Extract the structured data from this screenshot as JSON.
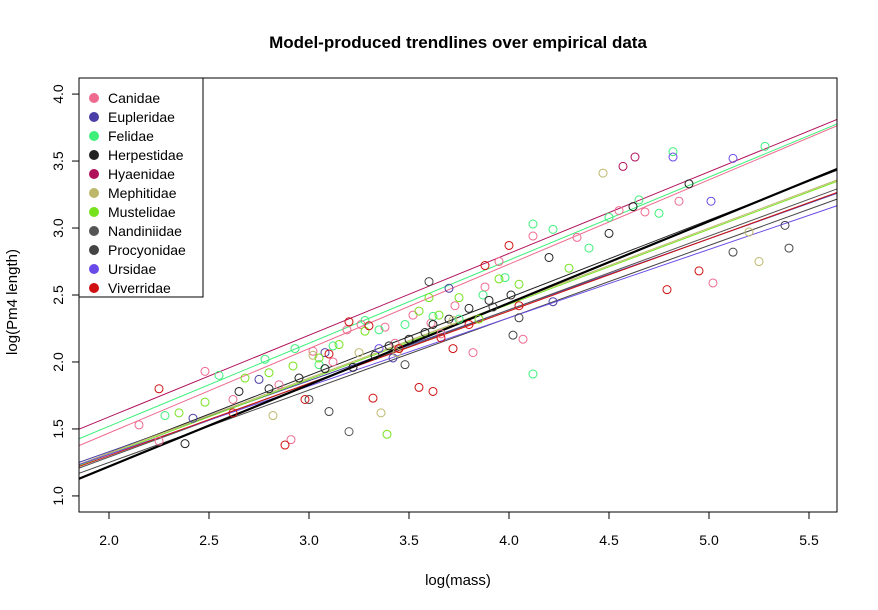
{
  "chart_data": {
    "type": "scatter",
    "title": "Model-produced trendlines over empirical data",
    "xlabel": "log(mass)",
    "ylabel": "log(Pm4 length)",
    "xlim": [
      1.85,
      5.64
    ],
    "ylim": [
      0.88,
      4.12
    ],
    "x_ticks": [
      "2.0",
      "2.5",
      "3.0",
      "3.5",
      "4.0",
      "4.5",
      "5.0",
      "5.5"
    ],
    "y_ticks": [
      "1.0",
      "1.5",
      "2.0",
      "2.5",
      "3.0",
      "3.5",
      "4.0"
    ],
    "legend_position": "top-left",
    "point_style": "open-circle",
    "series": [
      {
        "name": "Canidae",
        "color": "#ee6a8f",
        "points": [
          [
            2.15,
            1.53
          ],
          [
            2.25,
            1.41
          ],
          [
            2.48,
            1.93
          ],
          [
            2.62,
            1.72
          ],
          [
            2.85,
            1.83
          ],
          [
            2.91,
            1.42
          ],
          [
            3.02,
            2.08
          ],
          [
            3.12,
            2.0
          ],
          [
            3.19,
            2.24
          ],
          [
            3.26,
            2.28
          ],
          [
            3.38,
            2.26
          ],
          [
            3.43,
            2.14
          ],
          [
            3.52,
            2.35
          ],
          [
            3.61,
            2.29
          ],
          [
            3.66,
            2.21
          ],
          [
            3.73,
            2.42
          ],
          [
            3.82,
            2.07
          ],
          [
            3.88,
            2.56
          ],
          [
            3.95,
            2.75
          ],
          [
            4.07,
            2.17
          ],
          [
            4.12,
            2.94
          ],
          [
            4.34,
            2.93
          ],
          [
            4.55,
            3.13
          ],
          [
            4.68,
            3.12
          ],
          [
            4.85,
            3.2
          ],
          [
            5.02,
            2.59
          ]
        ],
        "trend": {
          "intercept": 0.21,
          "slope": 0.63
        }
      },
      {
        "name": "Eupleridae",
        "color": "#4a3fa6",
        "points": [
          [
            2.42,
            1.58
          ],
          [
            2.75,
            1.87
          ],
          [
            3.08,
            2.07
          ],
          [
            3.42,
            2.03
          ],
          [
            3.7,
            2.55
          ],
          [
            4.22,
            2.45
          ]
        ],
        "trend": {
          "intercept": 0.27,
          "slope": 0.53
        }
      },
      {
        "name": "Felidae",
        "color": "#3ef07a",
        "points": [
          [
            2.28,
            1.6
          ],
          [
            2.55,
            1.9
          ],
          [
            2.78,
            2.02
          ],
          [
            2.93,
            2.1
          ],
          [
            3.05,
            1.98
          ],
          [
            3.12,
            2.12
          ],
          [
            3.28,
            2.31
          ],
          [
            3.35,
            2.24
          ],
          [
            3.48,
            2.28
          ],
          [
            3.62,
            2.34
          ],
          [
            3.75,
            2.32
          ],
          [
            3.87,
            2.5
          ],
          [
            3.98,
            2.63
          ],
          [
            4.12,
            3.03
          ],
          [
            4.22,
            2.99
          ],
          [
            4.5,
            3.08
          ],
          [
            4.65,
            3.21
          ],
          [
            4.75,
            3.11
          ],
          [
            4.82,
            3.57
          ],
          [
            5.28,
            3.61
          ],
          [
            4.12,
            1.91
          ],
          [
            4.4,
            2.85
          ]
        ],
        "trend": {
          "intercept": 0.28,
          "slope": 0.62
        }
      },
      {
        "name": "Herpestidae",
        "color": "#222222",
        "points": [
          [
            2.38,
            1.39
          ],
          [
            2.65,
            1.78
          ],
          [
            2.8,
            1.8
          ],
          [
            2.95,
            1.88
          ],
          [
            3.08,
            1.95
          ],
          [
            3.22,
            1.96
          ],
          [
            3.33,
            2.05
          ],
          [
            3.4,
            2.12
          ],
          [
            3.5,
            2.17
          ],
          [
            3.58,
            2.22
          ],
          [
            3.62,
            2.28
          ],
          [
            3.7,
            2.32
          ],
          [
            3.8,
            2.4
          ],
          [
            3.9,
            2.46
          ],
          [
            4.01,
            2.5
          ],
          [
            4.2,
            2.78
          ],
          [
            4.5,
            2.96
          ],
          [
            4.62,
            3.16
          ],
          [
            4.9,
            3.33
          ]
        ],
        "trend": {
          "intercept": 0.16,
          "slope": 0.58
        }
      },
      {
        "name": "Hyaenidae",
        "color": "#b0105a",
        "points": [
          [
            4.57,
            3.46
          ],
          [
            4.63,
            3.53
          ]
        ],
        "trend": {
          "intercept": 0.37,
          "slope": 0.61
        }
      },
      {
        "name": "Mephitidae",
        "color": "#bdb76b",
        "points": [
          [
            2.82,
            1.6
          ],
          [
            3.02,
            2.05
          ],
          [
            3.25,
            2.07
          ],
          [
            3.36,
            1.62
          ],
          [
            3.44,
            2.07
          ],
          [
            3.72,
            2.31
          ],
          [
            4.47,
            3.41
          ],
          [
            5.2,
            2.97
          ],
          [
            5.25,
            2.75
          ]
        ],
        "trend": {
          "intercept": 0.2,
          "slope": 0.56
        }
      },
      {
        "name": "Mustelidae",
        "color": "#76e21c",
        "points": [
          [
            2.35,
            1.62
          ],
          [
            2.48,
            1.7
          ],
          [
            2.68,
            1.88
          ],
          [
            2.8,
            1.92
          ],
          [
            2.92,
            1.97
          ],
          [
            3.05,
            2.03
          ],
          [
            3.15,
            2.13
          ],
          [
            3.28,
            2.23
          ],
          [
            3.39,
            1.46
          ],
          [
            3.55,
            2.38
          ],
          [
            3.6,
            2.48
          ],
          [
            3.65,
            2.35
          ],
          [
            3.75,
            2.48
          ],
          [
            3.85,
            2.32
          ],
          [
            3.95,
            2.62
          ],
          [
            4.05,
            2.58
          ],
          [
            4.3,
            2.7
          ]
        ],
        "trend": {
          "intercept": 0.19,
          "slope": 0.56
        }
      },
      {
        "name": "Nandiniidae",
        "color": "#555555",
        "points": [
          [
            3.2,
            1.48
          ]
        ],
        "trend": {
          "intercept": 0.19,
          "slope": 0.55
        }
      },
      {
        "name": "Procyonidae",
        "color": "#444444",
        "points": [
          [
            3.0,
            1.72
          ],
          [
            3.1,
            1.63
          ],
          [
            3.48,
            1.98
          ],
          [
            3.6,
            2.6
          ],
          [
            3.92,
            2.41
          ],
          [
            4.02,
            2.2
          ],
          [
            4.05,
            2.33
          ],
          [
            5.12,
            2.82
          ],
          [
            5.38,
            3.02
          ],
          [
            5.4,
            2.85
          ]
        ],
        "trend": {
          "intercept": 0.17,
          "slope": 0.54
        }
      },
      {
        "name": "Ursidae",
        "color": "#6a4ae8",
        "points": [
          [
            4.82,
            3.53
          ],
          [
            5.01,
            3.2
          ],
          [
            5.12,
            3.52
          ],
          [
            3.35,
            2.1
          ]
        ],
        "trend": {
          "intercept": 0.29,
          "slope": 0.51
        }
      },
      {
        "name": "Viverridae",
        "color": "#d01010",
        "points": [
          [
            2.25,
            1.8
          ],
          [
            2.62,
            1.62
          ],
          [
            2.88,
            1.38
          ],
          [
            2.98,
            1.72
          ],
          [
            3.1,
            2.06
          ],
          [
            3.2,
            2.3
          ],
          [
            3.3,
            2.27
          ],
          [
            3.32,
            1.73
          ],
          [
            3.45,
            2.1
          ],
          [
            3.55,
            1.81
          ],
          [
            3.62,
            1.78
          ],
          [
            3.66,
            2.18
          ],
          [
            3.72,
            2.1
          ],
          [
            3.8,
            2.28
          ],
          [
            3.88,
            2.72
          ],
          [
            4.0,
            2.87
          ],
          [
            4.05,
            2.42
          ],
          [
            4.79,
            2.54
          ],
          [
            4.95,
            2.68
          ]
        ],
        "trend": {
          "intercept": 0.22,
          "slope": 0.54
        }
      }
    ],
    "overall_trend": {
      "color": "#000000",
      "intercept": 0.0,
      "slope": 0.61,
      "x0": 1.85,
      "x1": 5.64
    }
  }
}
